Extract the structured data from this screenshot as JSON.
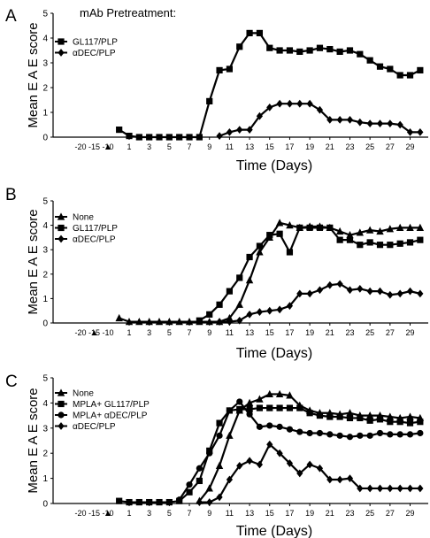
{
  "figure": {
    "pretreatment_label": "mAb Pretreatment:",
    "ylabel": "Mean E A E  score",
    "xlabel": "Time (Days)",
    "colors": {
      "line": "#000000",
      "background": "#ffffff"
    }
  },
  "chart_data": [
    {
      "panel": "A",
      "type": "line",
      "xlabel": "Time (Days)",
      "ylabel": "Mean E A E  score",
      "ylim": [
        0,
        5
      ],
      "x_tick_labels": [
        "-20",
        "-15",
        "-10",
        "1",
        "3",
        "5",
        "7",
        "9",
        "11",
        "13",
        "15",
        "17",
        "19",
        "21",
        "23",
        "25",
        "27",
        "29"
      ],
      "y_tick_labels": [
        "0",
        "1",
        "2",
        "3",
        "4",
        "5"
      ],
      "treatment_day": -10,
      "treatment_marker": "▲",
      "legend_position": "top-left",
      "series": [
        {
          "name": "GL117/PLP",
          "marker": "square",
          "x": [
            0,
            1,
            2,
            3,
            4,
            5,
            6,
            7,
            8,
            9,
            10,
            11,
            12,
            13,
            14,
            15,
            16,
            17,
            18,
            19,
            20,
            21,
            22,
            23,
            24,
            25,
            26,
            27,
            28,
            29,
            30
          ],
          "y": [
            0.3,
            0.05,
            0,
            0,
            0,
            0,
            0,
            0,
            0,
            1.45,
            2.7,
            2.75,
            3.65,
            4.2,
            4.2,
            3.6,
            3.5,
            3.5,
            3.45,
            3.5,
            3.6,
            3.55,
            3.45,
            3.5,
            3.35,
            3.1,
            2.85,
            2.75,
            2.5,
            2.5,
            2.7
          ]
        },
        {
          "name": "αDEC/PLP",
          "marker": "diamond",
          "x": [
            10,
            11,
            12,
            13,
            14,
            15,
            16,
            17,
            18,
            19,
            20,
            21,
            22,
            23,
            24,
            25,
            26,
            27,
            28,
            29,
            30
          ],
          "y": [
            0.05,
            0.2,
            0.3,
            0.3,
            0.85,
            1.2,
            1.35,
            1.35,
            1.35,
            1.35,
            1.1,
            0.7,
            0.7,
            0.7,
            0.6,
            0.55,
            0.55,
            0.55,
            0.5,
            0.2,
            0.2
          ]
        }
      ]
    },
    {
      "panel": "B",
      "type": "line",
      "xlabel": "Time (Days)",
      "ylabel": "Mean E A E  score",
      "ylim": [
        0,
        5
      ],
      "x_tick_labels": [
        "-20",
        "-15",
        "-10",
        "1",
        "3",
        "5",
        "7",
        "9",
        "11",
        "13",
        "15",
        "17",
        "19",
        "21",
        "23",
        "25",
        "27",
        "29"
      ],
      "y_tick_labels": [
        "0",
        "1",
        "2",
        "3",
        "4",
        "5"
      ],
      "treatment_day": -15,
      "treatment_marker": "▲",
      "legend_position": "top-left",
      "series": [
        {
          "name": "None",
          "marker": "triangle",
          "x": [
            0,
            1,
            2,
            3,
            4,
            5,
            6,
            7,
            8,
            9,
            10,
            11,
            12,
            13,
            14,
            15,
            16,
            17,
            18,
            19,
            20,
            21,
            22,
            23,
            24,
            25,
            26,
            27,
            28,
            29,
            30
          ],
          "y": [
            0.2,
            0.05,
            0.05,
            0.05,
            0.05,
            0.05,
            0.05,
            0.05,
            0.05,
            0.05,
            0.05,
            0.2,
            0.75,
            1.75,
            2.9,
            3.5,
            4.1,
            4.0,
            3.9,
            3.95,
            3.95,
            3.9,
            3.75,
            3.6,
            3.7,
            3.8,
            3.75,
            3.85,
            3.9,
            3.9,
            3.9
          ]
        },
        {
          "name": "GL117/PLP",
          "marker": "square",
          "x": [
            8,
            9,
            10,
            11,
            12,
            13,
            14,
            15,
            16,
            17,
            18,
            19,
            20,
            21,
            22,
            23,
            24,
            25,
            26,
            27,
            28,
            29,
            30
          ],
          "y": [
            0.1,
            0.35,
            0.75,
            1.3,
            1.85,
            2.7,
            3.15,
            3.6,
            3.65,
            2.9,
            3.9,
            3.9,
            3.9,
            3.9,
            3.4,
            3.4,
            3.2,
            3.3,
            3.2,
            3.2,
            3.25,
            3.3,
            3.4
          ]
        },
        {
          "name": "αDEC/PLP",
          "marker": "diamond",
          "x": [
            10,
            11,
            12,
            13,
            14,
            15,
            16,
            17,
            18,
            19,
            20,
            21,
            22,
            23,
            24,
            25,
            26,
            27,
            28,
            29,
            30
          ],
          "y": [
            0.05,
            0.05,
            0.1,
            0.35,
            0.45,
            0.5,
            0.55,
            0.7,
            1.2,
            1.2,
            1.35,
            1.55,
            1.6,
            1.35,
            1.4,
            1.3,
            1.3,
            1.15,
            1.2,
            1.3,
            1.2
          ]
        }
      ]
    },
    {
      "panel": "C",
      "type": "line",
      "xlabel": "Time (Days)",
      "ylabel": "Mean E A E  score",
      "ylim": [
        0,
        5
      ],
      "x_tick_labels": [
        "-20",
        "-15",
        "-10",
        "1",
        "3",
        "5",
        "7",
        "9",
        "11",
        "13",
        "15",
        "17",
        "19",
        "21",
        "23",
        "25",
        "27",
        "29"
      ],
      "y_tick_labels": [
        "0",
        "1",
        "2",
        "3",
        "4",
        "5"
      ],
      "treatment_day": -10,
      "treatment_marker": "▲",
      "legend_position": "top-left",
      "series": [
        {
          "name": "None",
          "marker": "triangle",
          "x": [
            8,
            9,
            10,
            11,
            12,
            13,
            14,
            15,
            16,
            17,
            18,
            19,
            20,
            21,
            22,
            23,
            24,
            25,
            26,
            27,
            28,
            29,
            30
          ],
          "y": [
            0.1,
            0.6,
            1.5,
            2.7,
            3.7,
            4.0,
            4.15,
            4.35,
            4.35,
            4.3,
            3.9,
            3.7,
            3.6,
            3.6,
            3.55,
            3.6,
            3.5,
            3.5,
            3.5,
            3.45,
            3.4,
            3.45,
            3.4
          ]
        },
        {
          "name": "MPLA+ GL117/PLP",
          "marker": "square",
          "x": [
            0,
            1,
            2,
            3,
            4,
            5,
            6,
            7,
            8,
            9,
            10,
            11,
            12,
            13,
            14,
            15,
            16,
            17,
            18,
            19,
            20,
            21,
            22,
            23,
            24,
            25,
            26,
            27,
            28,
            29,
            30
          ],
          "y": [
            0.1,
            0.05,
            0.05,
            0.05,
            0.05,
            0.05,
            0.1,
            0.45,
            0.9,
            2.1,
            3.2,
            3.7,
            3.75,
            3.75,
            3.8,
            3.8,
            3.8,
            3.8,
            3.8,
            3.6,
            3.5,
            3.45,
            3.45,
            3.4,
            3.4,
            3.3,
            3.35,
            3.25,
            3.25,
            3.2,
            3.25
          ]
        },
        {
          "name": "MPLA+ αDEC/PLP",
          "marker": "circle",
          "x": [
            6,
            7,
            8,
            9,
            10,
            11,
            12,
            13,
            14,
            15,
            16,
            17,
            18,
            19,
            20,
            21,
            22,
            23,
            24,
            25,
            26,
            27,
            28,
            29,
            30
          ],
          "y": [
            0.15,
            0.75,
            1.4,
            2.0,
            2.7,
            3.7,
            4.05,
            3.55,
            3.05,
            3.1,
            3.05,
            2.95,
            2.85,
            2.8,
            2.8,
            2.75,
            2.7,
            2.65,
            2.7,
            2.7,
            2.8,
            2.75,
            2.75,
            2.75,
            2.8
          ]
        },
        {
          "name": "αDEC/PLP",
          "marker": "diamond",
          "x": [
            8,
            9,
            10,
            11,
            12,
            13,
            14,
            15,
            16,
            17,
            18,
            19,
            20,
            21,
            22,
            23,
            24,
            25,
            26,
            27,
            28,
            29,
            30
          ],
          "y": [
            0.05,
            0.05,
            0.25,
            0.95,
            1.5,
            1.7,
            1.55,
            2.35,
            2.0,
            1.6,
            1.2,
            1.55,
            1.4,
            0.95,
            0.95,
            1.0,
            0.6,
            0.6,
            0.6,
            0.6,
            0.6,
            0.6,
            0.6
          ]
        }
      ]
    }
  ]
}
